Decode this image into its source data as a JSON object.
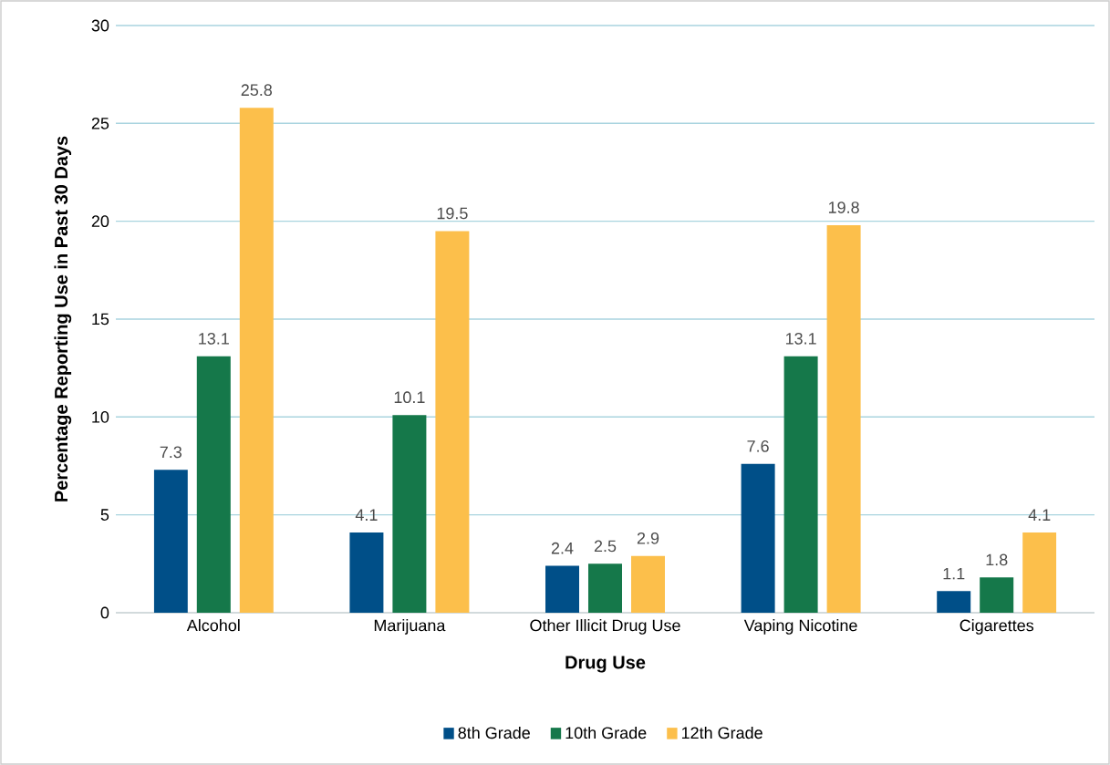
{
  "chart_data": {
    "type": "bar",
    "xlabel": "Drug Use",
    "ylabel": "Percentage Reporting Use in Past 30 Days",
    "categories": [
      "Alcohol",
      "Marijuana",
      "Other Illicit Drug Use",
      "Vaping Nicotine",
      "Cigarettes"
    ],
    "series": [
      {
        "name": "8th Grade",
        "color": "#004f88",
        "values": [
          7.3,
          4.1,
          2.4,
          7.6,
          1.1
        ]
      },
      {
        "name": "10th Grade",
        "color": "#15784a",
        "values": [
          13.1,
          10.1,
          2.5,
          13.1,
          1.8
        ]
      },
      {
        "name": "12th Grade",
        "color": "#fcbf4b",
        "values": [
          25.8,
          19.5,
          2.9,
          19.8,
          4.1
        ]
      }
    ],
    "ylim": [
      0,
      30
    ],
    "yticks": [
      0,
      5,
      10,
      15,
      20,
      25,
      30
    ],
    "grid": "y",
    "legend": "bottom",
    "data_labels": true
  }
}
